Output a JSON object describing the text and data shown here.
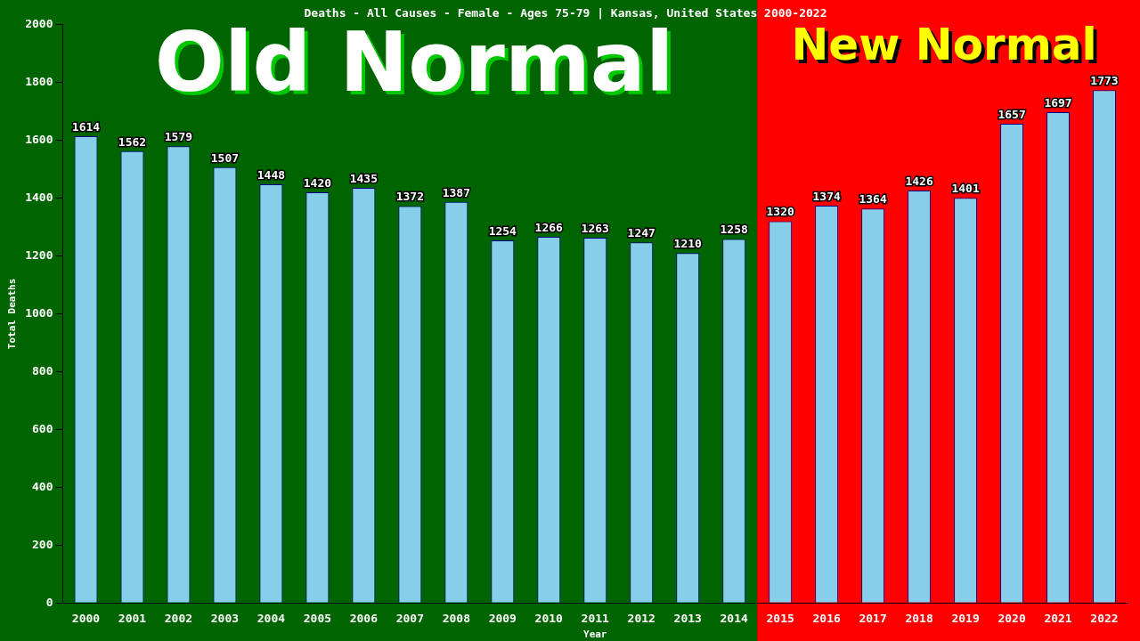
{
  "chart_data": {
    "type": "bar",
    "title": "Deaths - All Causes - Female - Ages 75-79 | Kansas, United States 2000-2022",
    "xlabel": "Year",
    "ylabel": "Total Deaths",
    "categories": [
      "2000",
      "2001",
      "2002",
      "2003",
      "2004",
      "2005",
      "2006",
      "2007",
      "2008",
      "2009",
      "2010",
      "2011",
      "2012",
      "2013",
      "2014",
      "2015",
      "2016",
      "2017",
      "2018",
      "2019",
      "2020",
      "2021",
      "2022"
    ],
    "values": [
      1614,
      1562,
      1579,
      1507,
      1448,
      1420,
      1435,
      1372,
      1387,
      1254,
      1266,
      1263,
      1247,
      1210,
      1258,
      1320,
      1374,
      1364,
      1426,
      1401,
      1657,
      1697,
      1773
    ],
    "color": "#87ceeb",
    "ylim": [
      0,
      2000
    ],
    "yticks": [
      0,
      200,
      400,
      600,
      800,
      1000,
      1200,
      1400,
      1600,
      1800,
      2000
    ],
    "grid": false,
    "data_labels": true,
    "bands": [
      {
        "axis": "x",
        "from": "2000",
        "to": "2014",
        "label": "Old Normal",
        "color": "#006400"
      },
      {
        "axis": "x",
        "from": "2015",
        "to": "2022",
        "label": "New Normal",
        "color": "#ff0000"
      }
    ]
  }
}
